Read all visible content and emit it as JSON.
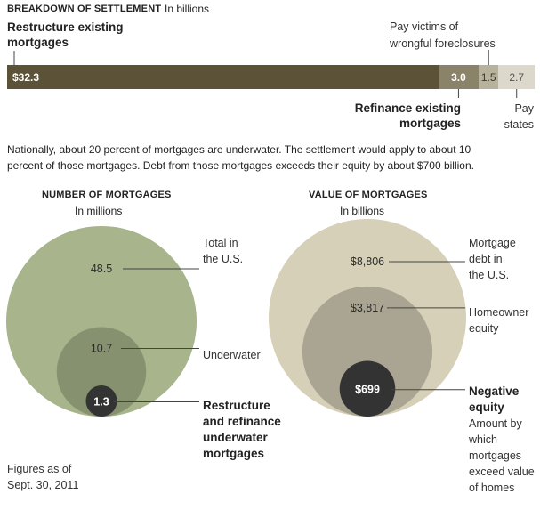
{
  "settlement": {
    "heading": "BREAKDOWN OF SETTLEMENT",
    "unit": "In billions",
    "label_restructure": [
      "Restructure existing",
      "mortgages"
    ],
    "label_victims": [
      "Pay victims of",
      "wrongful foreclosures"
    ],
    "label_refinance": [
      "Refinance existing",
      "mortgages"
    ],
    "label_states": [
      "Pay",
      "states"
    ]
  },
  "summary": [
    "Nationally, about 20 percent of mortgages are underwater. The settlement would apply to about 10",
    "percent of those mortgages. Debt from those mortgages exceeds their equity by about $700 billion."
  ],
  "number_chart": {
    "heading": "NUMBER OF MORTGAGES",
    "unit": "In millions",
    "label_total": [
      "Total in",
      "the U.S."
    ],
    "label_underwater": "Underwater",
    "label_restructure": [
      "Restructure",
      "and refinance",
      "underwater",
      "mortgages"
    ]
  },
  "value_chart": {
    "heading": "VALUE OF MORTGAGES",
    "unit": "In billions",
    "label_debt": [
      "Mortgage",
      "debt in",
      "the U.S."
    ],
    "label_equity": [
      "Homeowner",
      "equity"
    ],
    "label_negative": [
      "Negative",
      "equity"
    ],
    "label_negative_note": [
      "Amount by",
      "which",
      "mortgages",
      "exceed value",
      "of homes"
    ]
  },
  "footnote": [
    "Figures as of",
    "Sept. 30, 2011"
  ],
  "colors": {
    "restructure": "#5c5238",
    "refinance": "#8a836a",
    "victims": "#b7b29c",
    "states": "#dcd9cc",
    "green_outer": "#a7b48c",
    "green_mid": "#86916f",
    "green_inner": "#333333",
    "tan_outer": "#d6d0b8",
    "tan_mid": "#a9a592",
    "tan_inner": "#333333"
  },
  "chart_data": [
    {
      "type": "bar",
      "orientation": "horizontal-stacked",
      "categories": [
        "Restructure existing mortgages",
        "Refinance existing mortgages",
        "Pay victims of wrongful foreclosures",
        "Pay states"
      ],
      "values": [
        32.3,
        3.0,
        1.5,
        2.7
      ],
      "value_labels": [
        "$32.3",
        "3.0",
        "1.5",
        "2.7"
      ],
      "title": "BREAKDOWN OF SETTLEMENT",
      "unit": "In billions"
    },
    {
      "type": "nested-circles",
      "title": "NUMBER OF MORTGAGES",
      "unit": "In millions",
      "categories": [
        "Total in the U.S.",
        "Underwater",
        "Restructure and refinance underwater mortgages"
      ],
      "values": [
        48.5,
        10.7,
        1.3
      ],
      "value_labels": [
        "48.5",
        "10.7",
        "1.3"
      ]
    },
    {
      "type": "nested-circles",
      "title": "VALUE OF MORTGAGES",
      "unit": "In billions",
      "categories": [
        "Mortgage debt in the U.S.",
        "Homeowner equity",
        "Negative equity"
      ],
      "values": [
        8806,
        3817,
        699
      ],
      "value_labels": [
        "$8,806",
        "$3,817",
        "$699"
      ]
    }
  ]
}
